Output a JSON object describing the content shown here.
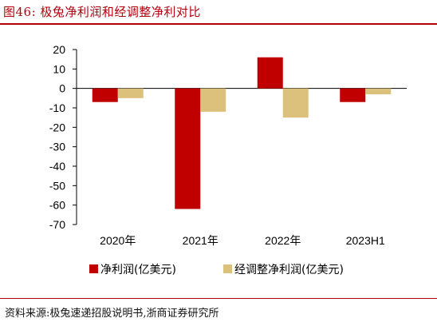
{
  "header": {
    "title": "图46:   极兔净利润和经调整净利对比"
  },
  "footer": {
    "source": "资料来源:极兔速递招股说明书,浙商证券研究所"
  },
  "chart_data": {
    "type": "bar",
    "title": "",
    "xlabel": "",
    "ylabel": "",
    "categories": [
      "2020年",
      "2021年",
      "2022年",
      "2023H1"
    ],
    "series": [
      {
        "name": "净利润(亿美元)",
        "color": "#c00000",
        "values": [
          -7,
          -62,
          16,
          -7
        ]
      },
      {
        "name": "经调整净利润(亿美元)",
        "color": "#dbc17c",
        "values": [
          -5,
          -12,
          -15,
          -3
        ]
      }
    ],
    "ylim": [
      -70,
      20
    ],
    "yticks": [
      20,
      10,
      0,
      -10,
      -20,
      -30,
      -40,
      -50,
      -60,
      -70
    ],
    "grid": false,
    "legend_position": "bottom-center"
  }
}
